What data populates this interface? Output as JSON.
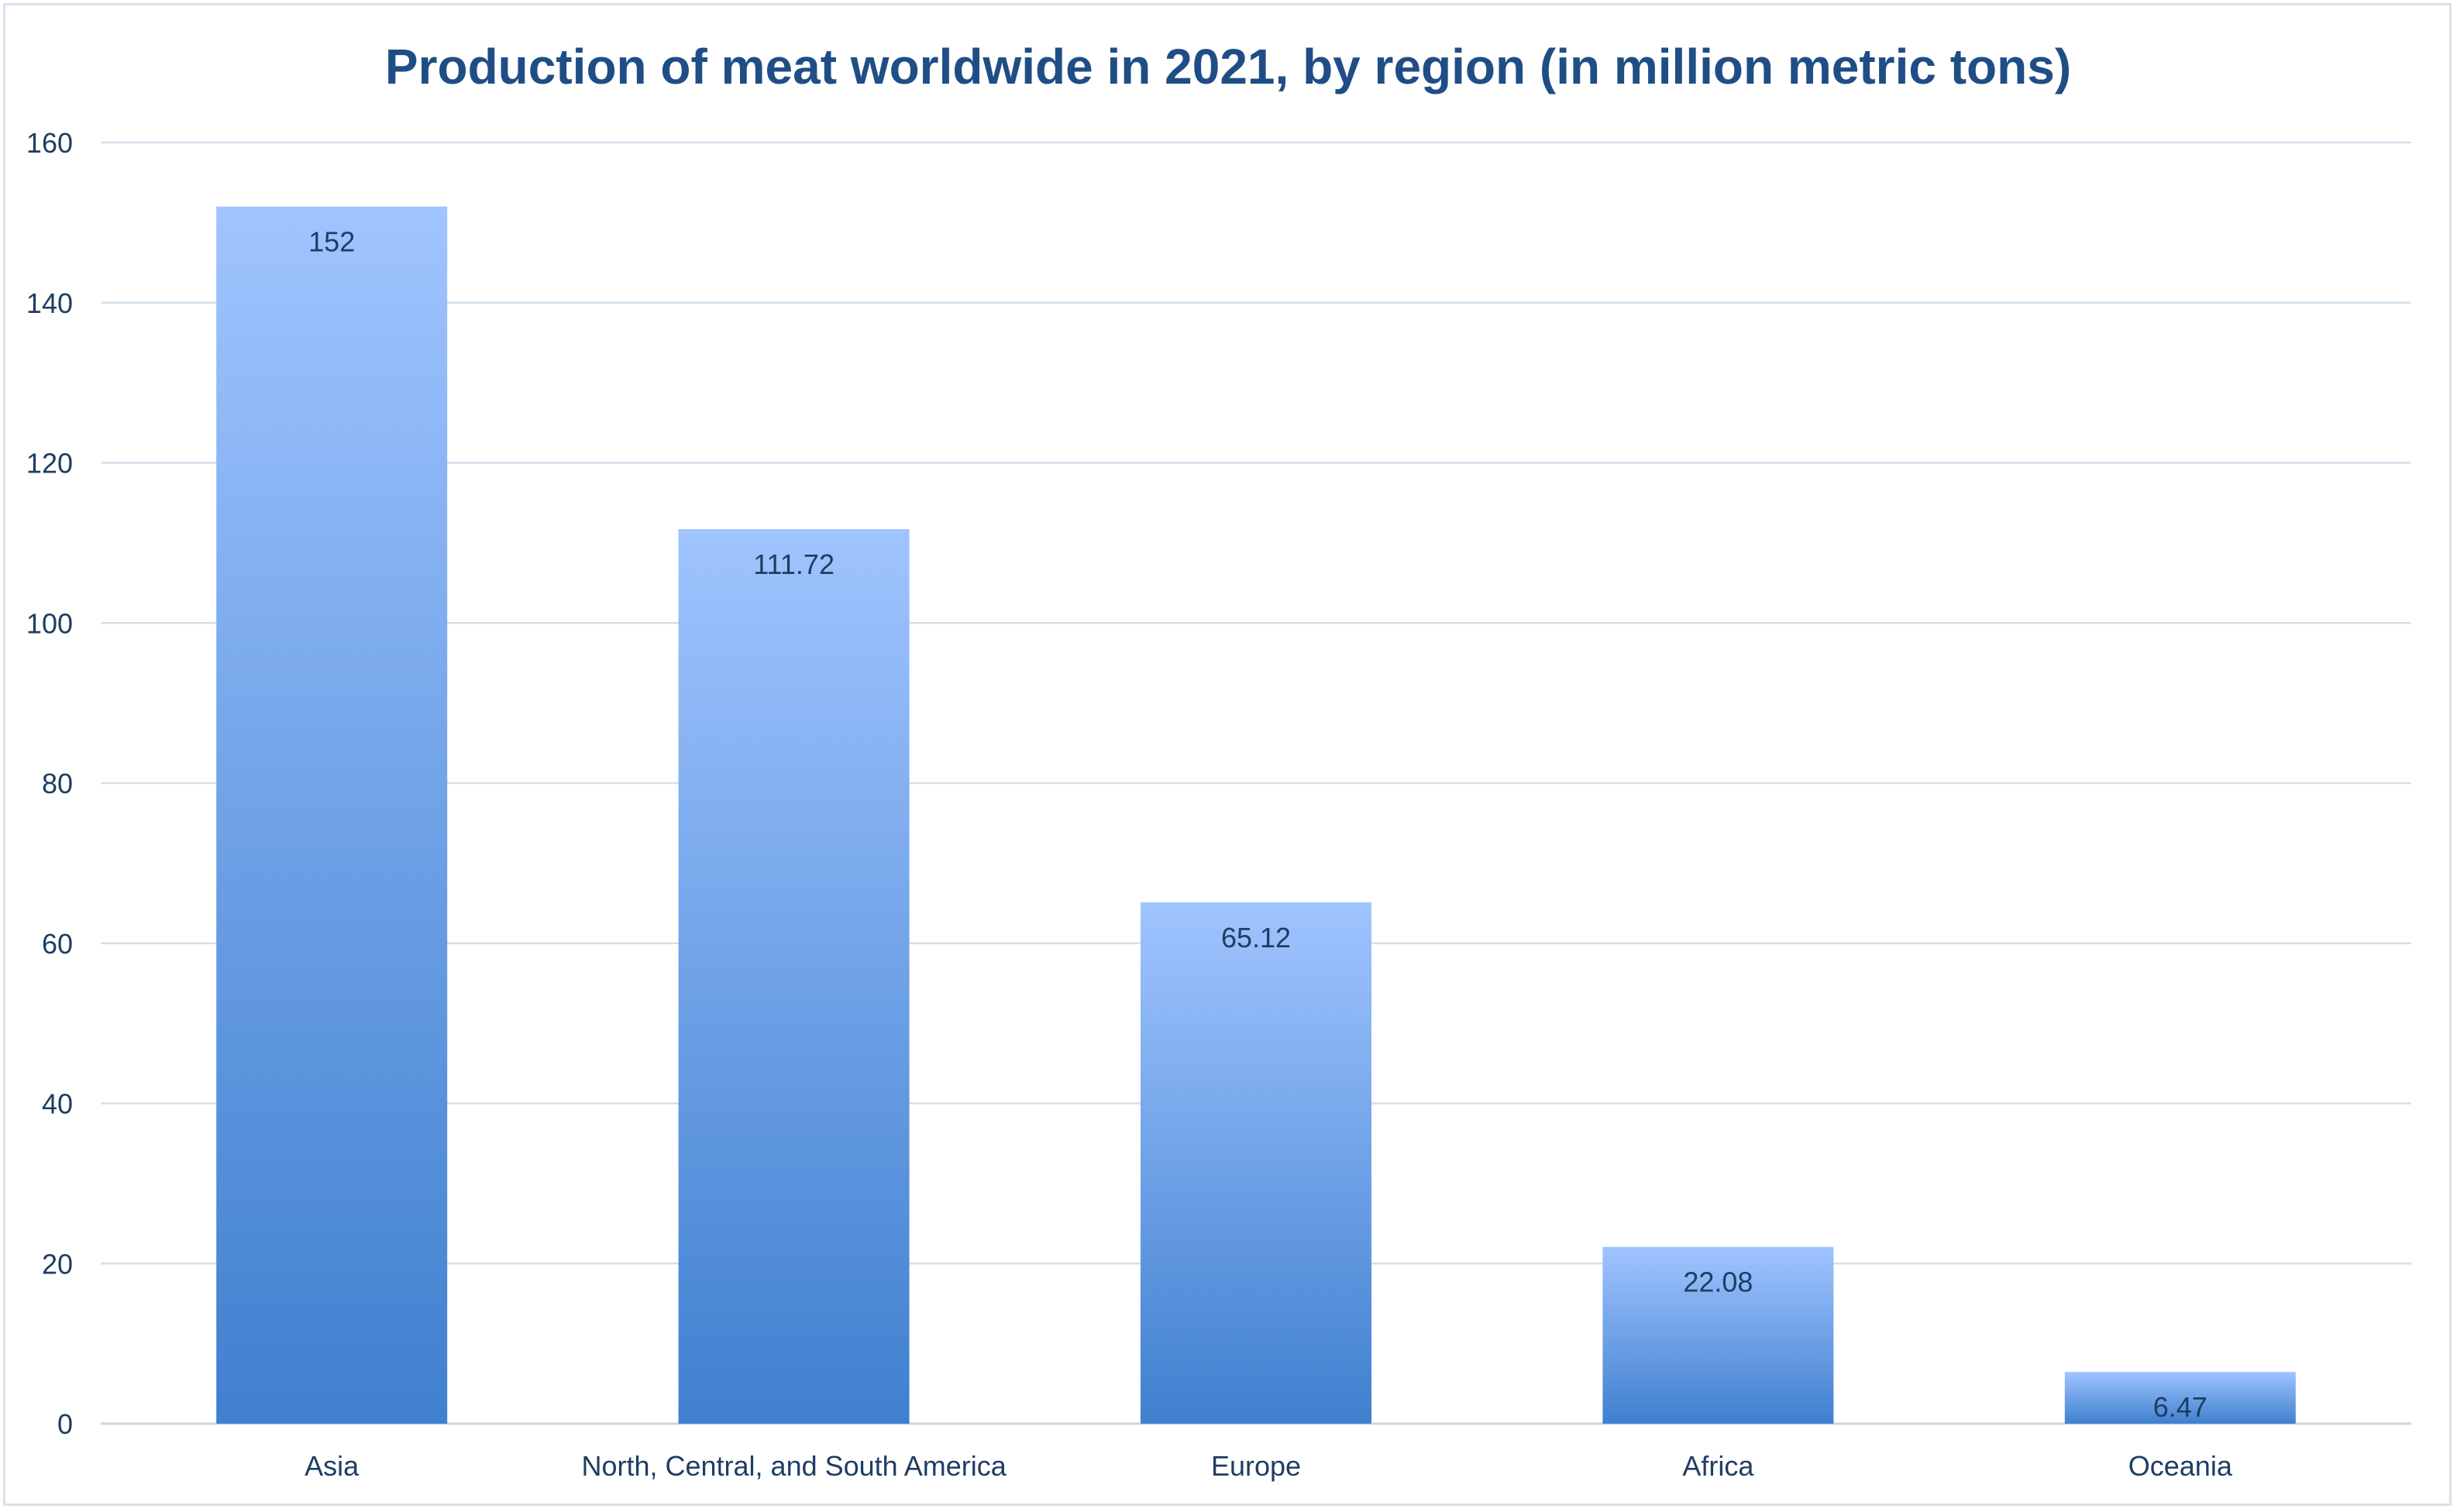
{
  "chart_data": {
    "type": "bar",
    "title": "Production of meat worldwide in 2021, by region (in million metric tons)",
    "xlabel": "",
    "ylabel": "",
    "categories": [
      "Asia",
      "North, Central, and South America",
      "Europe",
      "Africa",
      "Oceania"
    ],
    "values": [
      152,
      111.72,
      65.12,
      22.08,
      6.47
    ],
    "value_labels": [
      "152",
      "111.72",
      "65.12",
      "22.08",
      "6.47"
    ],
    "ylim": [
      0,
      160
    ],
    "y_ticks": [
      "0",
      "20",
      "40",
      "60",
      "80",
      "100",
      "120",
      "140",
      "160"
    ],
    "grid": true,
    "legend": "none",
    "colors": {
      "bar_top": "#a0c4ff",
      "bar_bottom": "#3f80cf",
      "title": "#1f4e86",
      "text": "#1f3d63",
      "grid": "#d3e0ec"
    }
  }
}
